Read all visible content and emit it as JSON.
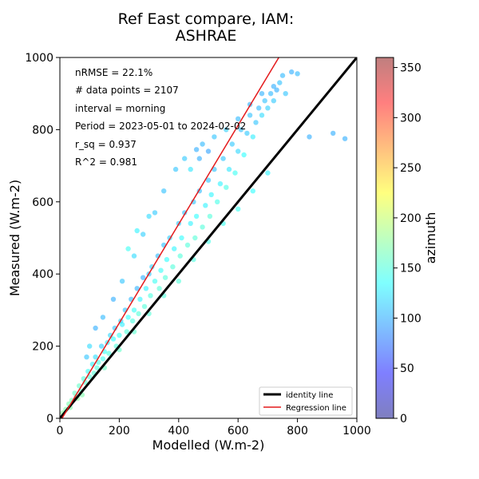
{
  "chart_data": {
    "type": "scatter",
    "title_lines": [
      "Ref East compare, IAM:",
      "ASHRAE"
    ],
    "xlabel": "Modelled (W.m-2)",
    "ylabel": "Measured (W.m-2)",
    "xlim": [
      0,
      1000
    ],
    "ylim": [
      0,
      1000
    ],
    "xticks": [
      "0",
      "200",
      "400",
      "600",
      "800",
      "1000"
    ],
    "yticks": [
      "0",
      "200",
      "400",
      "600",
      "800",
      "1000"
    ],
    "annotations": [
      "nRMSE = 22.1%",
      "# data points = 2107",
      "interval = morning",
      "Period = 2023-05-01 to 2024-02-02",
      "r_sq = 0.937",
      "R^2 = 0.981"
    ],
    "legend": {
      "position": "lower-right",
      "entries": [
        {
          "label": "identity line",
          "color": "#000000"
        },
        {
          "label": "Regression line",
          "color": "#e41a1c"
        }
      ]
    },
    "identity_line": {
      "x": [
        0,
        1000
      ],
      "y": [
        0,
        1000
      ]
    },
    "regression_line": {
      "x": [
        0,
        1000
      ],
      "slope": 1.37,
      "intercept": -10
    },
    "colorbar": {
      "label": "azimuth",
      "range": [
        0,
        360
      ],
      "ticks": [
        "0",
        "50",
        "100",
        "150",
        "200",
        "250",
        "300",
        "350"
      ],
      "colormap": "jet",
      "alpha": 0.5
    },
    "series": [
      {
        "color_by": "azimuth",
        "points": [
          [
            10,
            15,
            175
          ],
          [
            20,
            25,
            170
          ],
          [
            30,
            40,
            168
          ],
          [
            40,
            50,
            165
          ],
          [
            50,
            70,
            160
          ],
          [
            55,
            60,
            172
          ],
          [
            65,
            90,
            158
          ],
          [
            70,
            75,
            162
          ],
          [
            80,
            110,
            150
          ],
          [
            85,
            100,
            155
          ],
          [
            95,
            130,
            140
          ],
          [
            100,
            115,
            150
          ],
          [
            110,
            150,
            130
          ],
          [
            115,
            125,
            152
          ],
          [
            120,
            170,
            122
          ],
          [
            125,
            140,
            148
          ],
          [
            130,
            155,
            145
          ],
          [
            140,
            200,
            115
          ],
          [
            145,
            165,
            142
          ],
          [
            150,
            185,
            138
          ],
          [
            160,
            210,
            125
          ],
          [
            165,
            180,
            148
          ],
          [
            170,
            230,
            118
          ],
          [
            180,
            220,
            135
          ],
          [
            185,
            250,
            110
          ],
          [
            190,
            200,
            150
          ],
          [
            200,
            230,
            140
          ],
          [
            205,
            270,
            112
          ],
          [
            210,
            260,
            128
          ],
          [
            220,
            300,
            108
          ],
          [
            225,
            240,
            150
          ],
          [
            230,
            280,
            135
          ],
          [
            240,
            330,
            105
          ],
          [
            245,
            270,
            148
          ],
          [
            250,
            300,
            138
          ],
          [
            260,
            360,
            102
          ],
          [
            265,
            290,
            150
          ],
          [
            270,
            330,
            132
          ],
          [
            280,
            390,
            100
          ],
          [
            285,
            310,
            150
          ],
          [
            290,
            360,
            130
          ],
          [
            300,
            400,
            110
          ],
          [
            305,
            340,
            148
          ],
          [
            310,
            420,
            115
          ],
          [
            320,
            380,
            140
          ],
          [
            330,
            450,
            105
          ],
          [
            335,
            360,
            152
          ],
          [
            340,
            410,
            138
          ],
          [
            350,
            480,
            108
          ],
          [
            355,
            390,
            150
          ],
          [
            360,
            440,
            135
          ],
          [
            370,
            500,
            112
          ],
          [
            380,
            420,
            150
          ],
          [
            385,
            470,
            132
          ],
          [
            400,
            540,
            110
          ],
          [
            405,
            450,
            150
          ],
          [
            410,
            500,
            135
          ],
          [
            420,
            570,
            108
          ],
          [
            430,
            480,
            150
          ],
          [
            440,
            540,
            130
          ],
          [
            450,
            600,
            110
          ],
          [
            455,
            500,
            152
          ],
          [
            460,
            560,
            135
          ],
          [
            470,
            630,
            105
          ],
          [
            480,
            530,
            150
          ],
          [
            490,
            590,
            130
          ],
          [
            500,
            660,
            110
          ],
          [
            505,
            560,
            150
          ],
          [
            510,
            620,
            132
          ],
          [
            520,
            690,
            108
          ],
          [
            530,
            600,
            145
          ],
          [
            540,
            650,
            130
          ],
          [
            550,
            720,
            110
          ],
          [
            560,
            640,
            145
          ],
          [
            570,
            690,
            125
          ],
          [
            580,
            760,
            112
          ],
          [
            590,
            680,
            140
          ],
          [
            600,
            740,
            118
          ],
          [
            610,
            800,
            105
          ],
          [
            620,
            730,
            135
          ],
          [
            630,
            790,
            112
          ],
          [
            640,
            840,
            108
          ],
          [
            650,
            780,
            128
          ],
          [
            660,
            820,
            110
          ],
          [
            670,
            860,
            105
          ],
          [
            680,
            840,
            120
          ],
          [
            690,
            880,
            108
          ],
          [
            700,
            860,
            115
          ],
          [
            710,
            900,
            105
          ],
          [
            720,
            880,
            112
          ],
          [
            730,
            910,
            100
          ],
          [
            740,
            930,
            108
          ],
          [
            750,
            950,
            105
          ],
          [
            760,
            900,
            110
          ],
          [
            780,
            960,
            100
          ],
          [
            800,
            955,
            105
          ],
          [
            840,
            780,
            100
          ],
          [
            920,
            790,
            100
          ],
          [
            960,
            775,
            100
          ],
          [
            460,
            745,
            100
          ],
          [
            500,
            740,
            95
          ],
          [
            470,
            720,
            100
          ],
          [
            230,
            470,
            140
          ],
          [
            260,
            520,
            130
          ],
          [
            300,
            560,
            120
          ],
          [
            120,
            250,
            100
          ],
          [
            100,
            200,
            120
          ],
          [
            90,
            170,
            110
          ],
          [
            145,
            280,
            105
          ],
          [
            180,
            330,
            100
          ],
          [
            210,
            380,
            110
          ],
          [
            250,
            450,
            120
          ],
          [
            280,
            510,
            115
          ],
          [
            320,
            570,
            112
          ],
          [
            350,
            630,
            108
          ],
          [
            390,
            690,
            110
          ],
          [
            420,
            720,
            112
          ],
          [
            440,
            690,
            125
          ],
          [
            480,
            760,
            105
          ],
          [
            520,
            780,
            110
          ],
          [
            560,
            800,
            112
          ],
          [
            600,
            830,
            105
          ],
          [
            640,
            870,
            100
          ],
          [
            680,
            900,
            102
          ],
          [
            720,
            920,
            100
          ],
          [
            60,
            55,
            175
          ],
          [
            35,
            30,
            172
          ],
          [
            75,
            65,
            170
          ],
          [
            150,
            140,
            160
          ],
          [
            200,
            190,
            158
          ],
          [
            250,
            240,
            155
          ],
          [
            300,
            290,
            152
          ],
          [
            350,
            340,
            150
          ],
          [
            400,
            380,
            150
          ],
          [
            450,
            440,
            148
          ],
          [
            500,
            490,
            145
          ],
          [
            550,
            540,
            142
          ],
          [
            600,
            580,
            140
          ],
          [
            650,
            630,
            135
          ],
          [
            700,
            680,
            130
          ]
        ]
      }
    ]
  }
}
